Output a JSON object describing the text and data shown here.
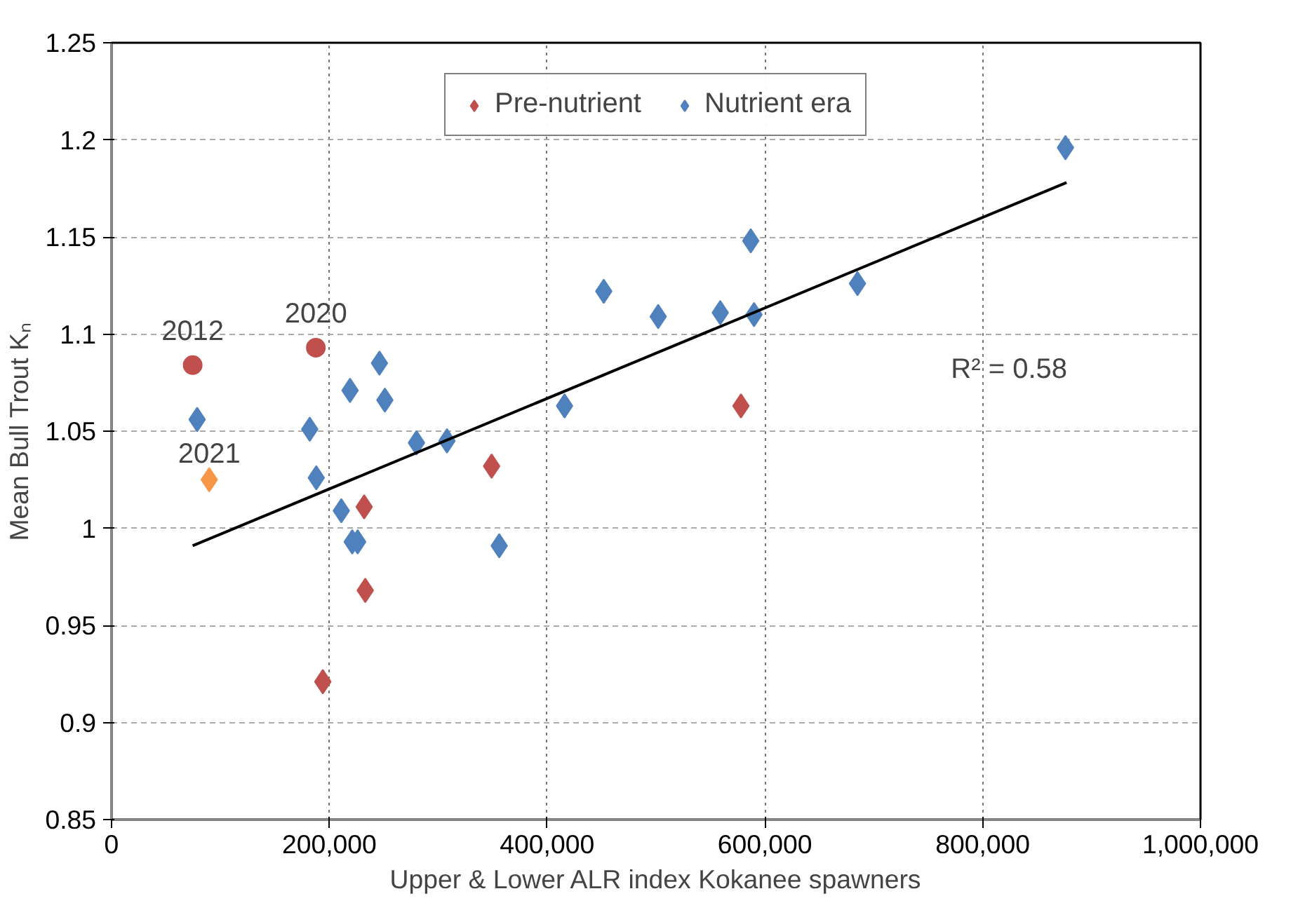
{
  "chart_data": {
    "type": "scatter",
    "xlabel": "Upper & Lower ALR index Kokanee spawners",
    "ylabel": "Mean Bull Trout Kₙ",
    "xlim": [
      0,
      1000000
    ],
    "xticks": [
      0,
      {
        "value": 200000,
        "label": "200,000"
      },
      {
        "value": 400000,
        "label": "400,000"
      },
      {
        "value": 600000,
        "label": "600,000"
      },
      {
        "value": 800000,
        "label": "800,000"
      },
      {
        "value": 1000000,
        "label": "1,000,000"
      }
    ],
    "ylim": [
      0.85,
      1.25
    ],
    "yticks": [
      0.85,
      0.9,
      0.95,
      1,
      1.05,
      1.1,
      1.15,
      1.2,
      1.25
    ],
    "grid": true,
    "legend": "top",
    "series": [
      {
        "name": "Pre-nutrient",
        "color": "#c0504d",
        "marker": "diamond",
        "x": [
          232000,
          233000,
          194000,
          349000,
          578000
        ],
        "values": [
          1.011,
          0.968,
          0.921,
          1.032,
          1.063
        ]
      },
      {
        "name": "Nutrient era",
        "color": "#4f81bd",
        "marker": "diamond",
        "x": [
          78600,
          182000,
          188000,
          211000,
          219000,
          246000,
          251000,
          221000,
          226000,
          280000,
          308000,
          356000,
          416000,
          452000,
          502000,
          559000,
          587000,
          590000,
          685000,
          876000
        ],
        "values": [
          1.056,
          1.051,
          1.026,
          1.009,
          1.071,
          1.085,
          1.066,
          0.993,
          0.993,
          1.044,
          1.045,
          0.991,
          1.063,
          1.122,
          1.109,
          1.111,
          1.148,
          1.11,
          1.126,
          1.196
        ]
      },
      {
        "color": "#c0504d",
        "marker": "circle",
        "x": [
          74500,
          187600
        ],
        "values": [
          1.084,
          1.093
        ]
      },
      {
        "color": "#f79646",
        "marker": "diamond",
        "x": [
          89700
        ],
        "values": [
          1.025
        ]
      },
      {
        "type": "line",
        "color": "#000000",
        "marker": "none",
        "x": [
          74500,
          877000
        ],
        "values": [
          0.991,
          1.178
        ]
      }
    ],
    "annotations": [
      {
        "text": "2012",
        "x": 74500,
        "y": 1.084
      },
      {
        "text": "2020",
        "x": 187600,
        "y": 1.093
      },
      {
        "text": "2021",
        "x": 89700,
        "y": 1.025
      },
      "R² = 0.58"
    ]
  }
}
